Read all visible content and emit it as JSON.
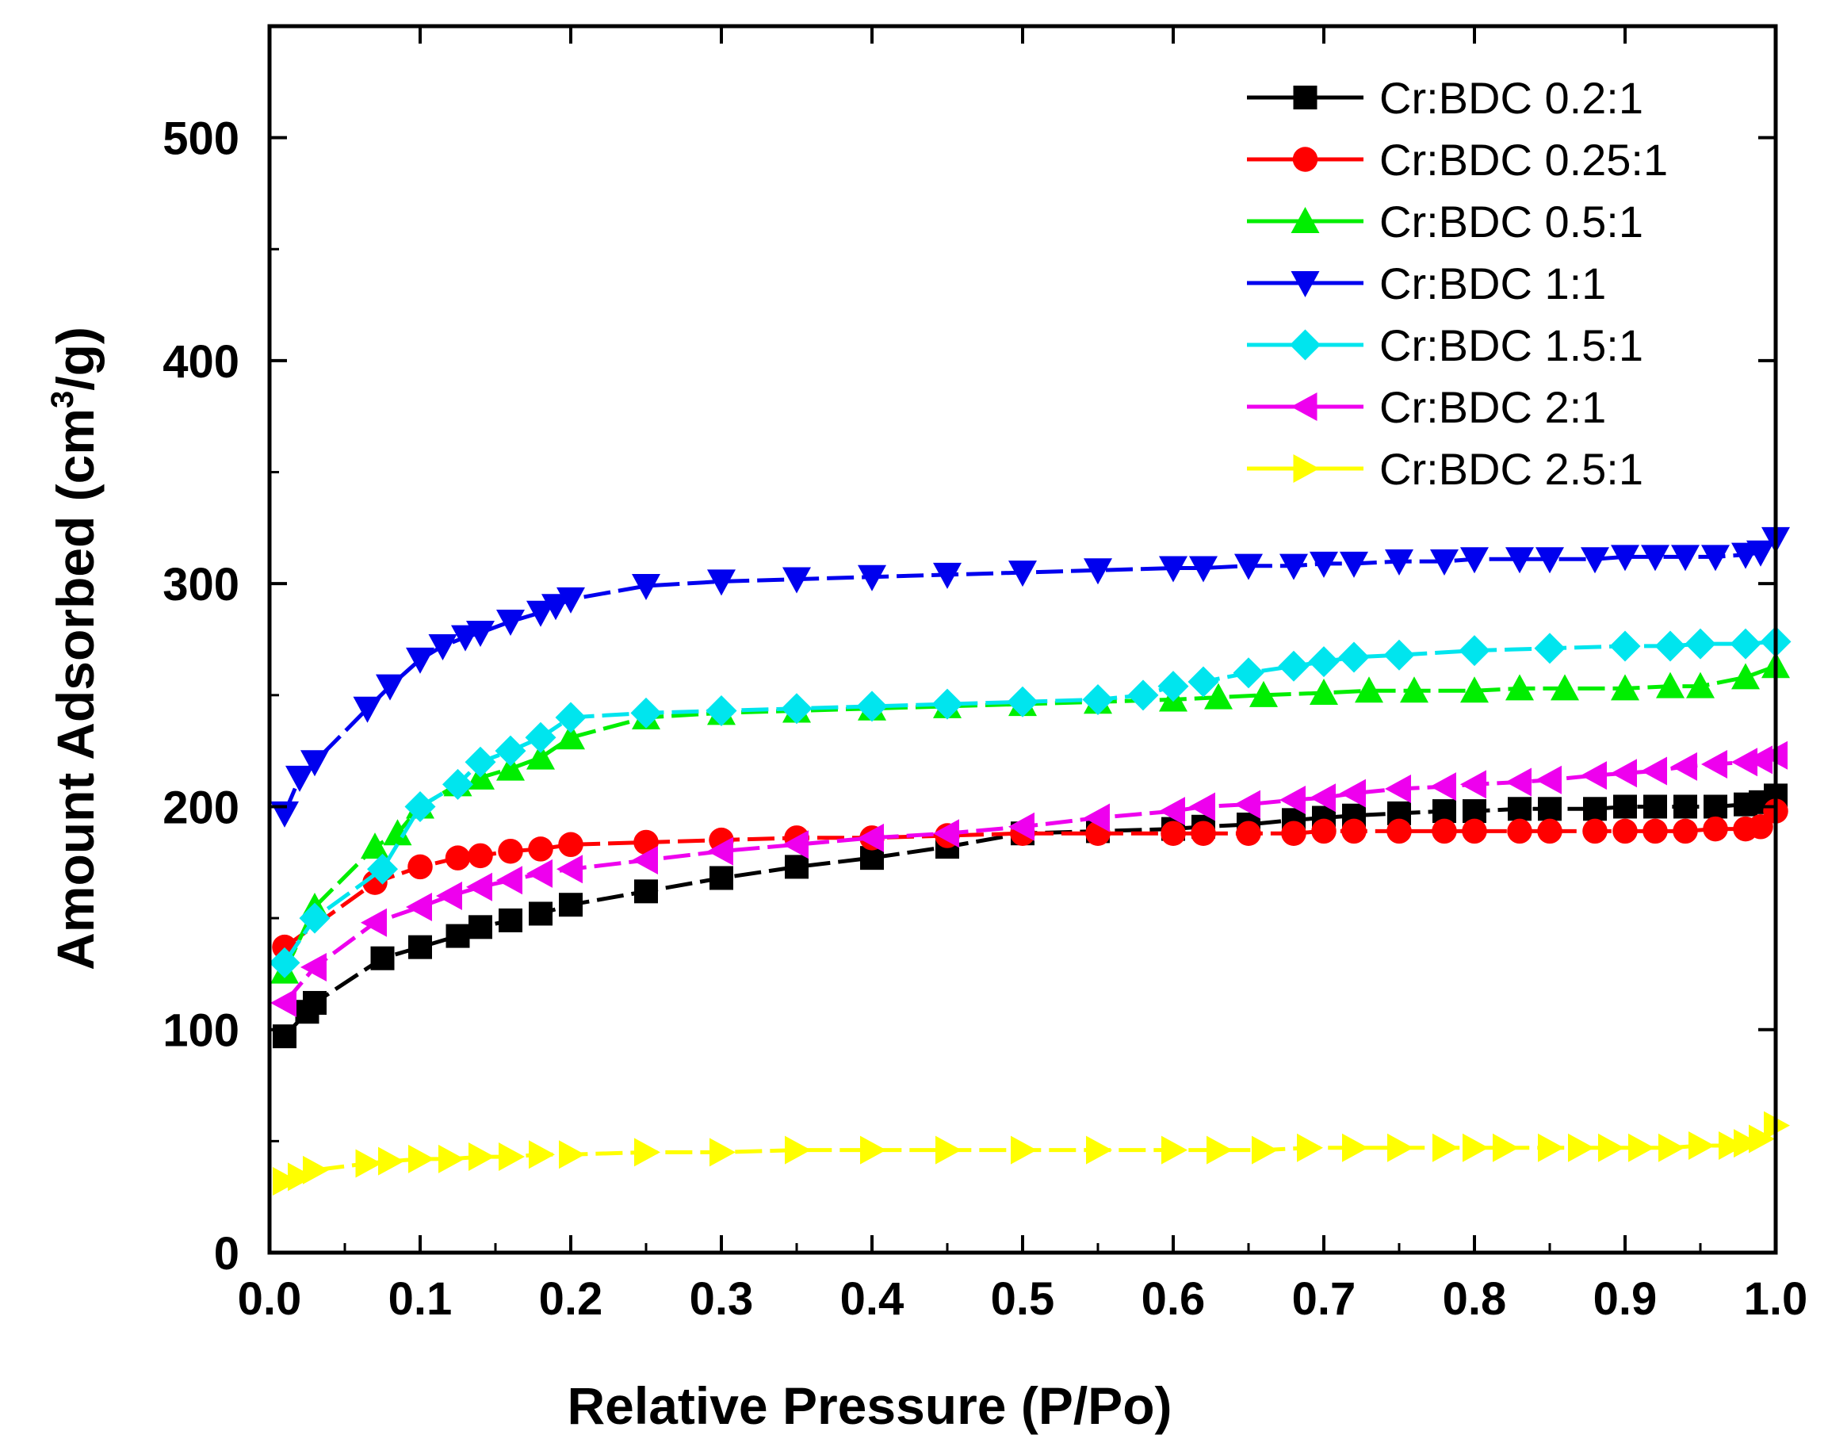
{
  "chart_data": {
    "type": "line",
    "title": "",
    "xlabel": "Relative Pressure (P/Po)",
    "ylabel": {
      "prefix": "Amount Adsorbed (cm",
      "superscript": "3",
      "suffix": "/g)"
    },
    "xlim": [
      0.0,
      1.0
    ],
    "ylim": [
      0,
      550
    ],
    "xticks": [
      "0.0",
      "0.1",
      "0.2",
      "0.3",
      "0.4",
      "0.5",
      "0.6",
      "0.7",
      "0.8",
      "0.9",
      "1.0"
    ],
    "yticks": [
      "0",
      "100",
      "200",
      "300",
      "400",
      "500"
    ],
    "grid": false,
    "legend_position": "top-right",
    "series": [
      {
        "name": "Cr:BDC 0.2:1",
        "color": "#000000",
        "marker": "square",
        "x": [
          0.01,
          0.025,
          0.03,
          0.075,
          0.1,
          0.125,
          0.14,
          0.16,
          0.18,
          0.2,
          0.25,
          0.3,
          0.35,
          0.4,
          0.45,
          0.5,
          0.55,
          0.6,
          0.62,
          0.65,
          0.68,
          0.7,
          0.72,
          0.75,
          0.78,
          0.8,
          0.83,
          0.85,
          0.88,
          0.9,
          0.92,
          0.94,
          0.96,
          0.98,
          0.99,
          1.0
        ],
        "y": [
          97,
          108,
          112,
          132,
          137,
          142,
          146,
          149,
          152,
          156,
          162,
          168,
          173,
          177,
          182,
          188,
          189,
          190,
          191,
          192,
          194,
          195,
          196,
          197,
          198,
          198,
          199,
          199,
          199,
          200,
          200,
          200,
          200,
          201,
          202,
          205
        ]
      },
      {
        "name": "Cr:BDC 0.25:1",
        "color": "#ff0000",
        "marker": "circle",
        "x": [
          0.01,
          0.07,
          0.1,
          0.125,
          0.14,
          0.16,
          0.18,
          0.2,
          0.25,
          0.3,
          0.35,
          0.4,
          0.45,
          0.5,
          0.55,
          0.6,
          0.62,
          0.65,
          0.68,
          0.7,
          0.72,
          0.75,
          0.78,
          0.8,
          0.83,
          0.85,
          0.88,
          0.9,
          0.92,
          0.94,
          0.96,
          0.98,
          0.99,
          1.0
        ],
        "y": [
          137,
          166,
          173,
          177,
          178,
          180,
          181,
          183,
          184,
          185,
          186,
          186,
          187,
          188,
          188,
          188,
          188,
          188,
          188,
          189,
          189,
          189,
          189,
          189,
          189,
          189,
          189,
          189,
          189,
          189,
          190,
          190,
          191,
          198
        ]
      },
      {
        "name": "Cr:BDC 0.5:1",
        "color": "#00ee00",
        "marker": "triangle-up",
        "x": [
          0.01,
          0.03,
          0.07,
          0.085,
          0.1,
          0.125,
          0.14,
          0.16,
          0.18,
          0.2,
          0.25,
          0.3,
          0.35,
          0.4,
          0.45,
          0.5,
          0.55,
          0.6,
          0.63,
          0.66,
          0.7,
          0.73,
          0.76,
          0.8,
          0.83,
          0.86,
          0.9,
          0.93,
          0.95,
          0.98,
          1.0
        ],
        "y": [
          126,
          155,
          182,
          188,
          200,
          210,
          213,
          217,
          222,
          231,
          240,
          242,
          243,
          244,
          245,
          246,
          247,
          248,
          249,
          250,
          251,
          252,
          252,
          252,
          253,
          253,
          253,
          254,
          254,
          258,
          263
        ]
      },
      {
        "name": "Cr:BDC 1:1",
        "color": "#0000ee",
        "marker": "triangle-down",
        "x": [
          0.01,
          0.02,
          0.03,
          0.065,
          0.08,
          0.1,
          0.115,
          0.13,
          0.14,
          0.16,
          0.18,
          0.19,
          0.2,
          0.25,
          0.3,
          0.35,
          0.4,
          0.45,
          0.5,
          0.55,
          0.6,
          0.62,
          0.65,
          0.68,
          0.7,
          0.72,
          0.75,
          0.78,
          0.8,
          0.83,
          0.85,
          0.88,
          0.9,
          0.92,
          0.94,
          0.96,
          0.98,
          0.99,
          1.0
        ],
        "y": [
          197,
          213,
          220,
          244,
          254,
          266,
          272,
          276,
          278,
          283,
          287,
          290,
          293,
          299,
          301,
          302,
          303,
          304,
          305,
          306,
          307,
          307,
          308,
          308,
          309,
          309,
          310,
          310,
          311,
          311,
          311,
          311,
          312,
          312,
          312,
          312,
          313,
          314,
          320
        ]
      },
      {
        "name": "Cr:BDC 1.5:1",
        "color": "#00e5ee",
        "marker": "diamond",
        "x": [
          0.01,
          0.03,
          0.075,
          0.1,
          0.125,
          0.14,
          0.16,
          0.18,
          0.2,
          0.25,
          0.3,
          0.35,
          0.4,
          0.45,
          0.5,
          0.55,
          0.58,
          0.6,
          0.62,
          0.65,
          0.68,
          0.7,
          0.72,
          0.75,
          0.8,
          0.85,
          0.9,
          0.93,
          0.95,
          0.98,
          1.0
        ],
        "y": [
          130,
          150,
          172,
          200,
          210,
          220,
          225,
          231,
          240,
          242,
          243,
          244,
          245,
          246,
          247,
          248,
          250,
          254,
          256,
          260,
          263,
          265,
          267,
          268,
          270,
          271,
          272,
          272,
          273,
          273,
          274
        ]
      },
      {
        "name": "Cr:BDC 2:1",
        "color": "#ee00ee",
        "marker": "triangle-left",
        "x": [
          0.01,
          0.03,
          0.07,
          0.1,
          0.12,
          0.14,
          0.16,
          0.18,
          0.2,
          0.25,
          0.3,
          0.35,
          0.4,
          0.45,
          0.5,
          0.55,
          0.6,
          0.62,
          0.65,
          0.68,
          0.7,
          0.72,
          0.75,
          0.78,
          0.8,
          0.83,
          0.85,
          0.88,
          0.9,
          0.92,
          0.94,
          0.96,
          0.98,
          0.99,
          1.0
        ],
        "y": [
          112,
          128,
          148,
          155,
          160,
          164,
          167,
          170,
          172,
          176,
          180,
          183,
          186,
          188,
          191,
          195,
          198,
          200,
          201,
          203,
          204,
          206,
          208,
          209,
          210,
          211,
          212,
          214,
          215,
          216,
          218,
          219,
          220,
          221,
          223
        ]
      },
      {
        "name": "Cr:BDC 2.5:1",
        "color": "#ffff00",
        "marker": "triangle-right",
        "x": [
          0.01,
          0.02,
          0.03,
          0.065,
          0.08,
          0.1,
          0.12,
          0.14,
          0.16,
          0.18,
          0.2,
          0.25,
          0.3,
          0.35,
          0.4,
          0.45,
          0.5,
          0.55,
          0.6,
          0.63,
          0.66,
          0.69,
          0.72,
          0.75,
          0.78,
          0.8,
          0.82,
          0.85,
          0.87,
          0.89,
          0.91,
          0.93,
          0.95,
          0.97,
          0.98,
          0.99,
          1.0
        ],
        "y": [
          32,
          34,
          37,
          40,
          41,
          42,
          42,
          43,
          43,
          44,
          44,
          45,
          45,
          46,
          46,
          46,
          46,
          46,
          46,
          46,
          46,
          47,
          47,
          47,
          47,
          47,
          47,
          47,
          47,
          47,
          47,
          47,
          48,
          48,
          49,
          51,
          57
        ]
      }
    ]
  }
}
